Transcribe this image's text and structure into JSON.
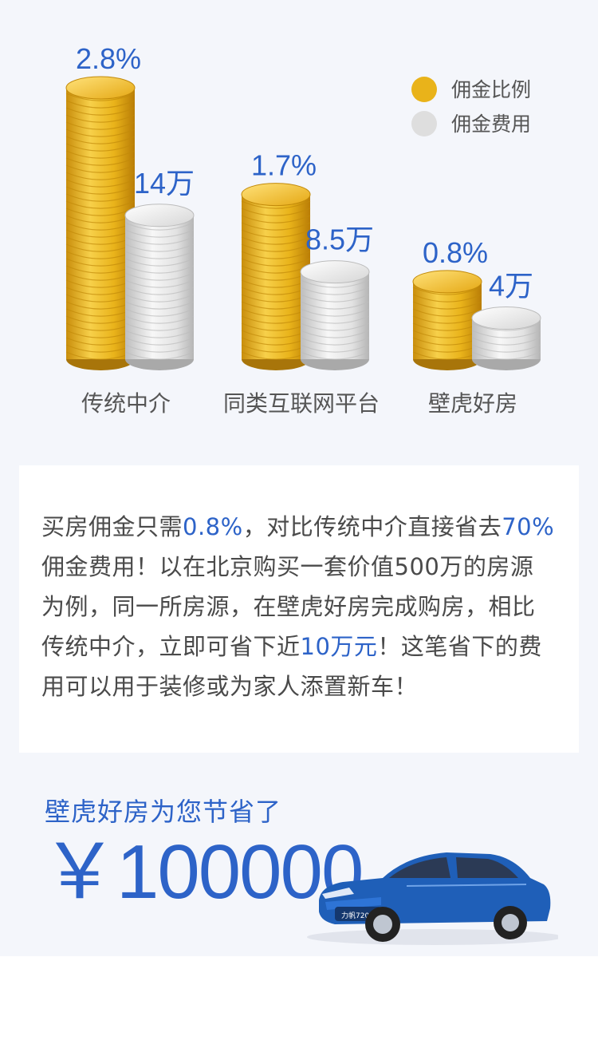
{
  "chart_data": {
    "type": "bar",
    "categories": [
      "传统中介",
      "同类互联网平台",
      "壁虎好房"
    ],
    "series": [
      {
        "name": "佣金比例",
        "values": [
          2.8,
          1.7,
          0.8
        ],
        "labels": [
          "2.8%",
          "1.7%",
          "0.8%"
        ],
        "color": "#e9b31a"
      },
      {
        "name": "佣金费用",
        "values": [
          14,
          8.5,
          4
        ],
        "labels": [
          "14万",
          "8.5万",
          "4万"
        ],
        "color": "#dcdcdc"
      }
    ],
    "legend_position": "top-right",
    "label_color": "#2d63c8"
  },
  "description": {
    "s1": "买房佣金只需",
    "h1": "0.8%",
    "s2": "，对比传统中介直接省去",
    "h2": "70%",
    "s3": "佣金费用！以在北京购买一套价值500万的房源为例，同一所房源，在壁虎好房完成购房，相比传统中介，立即可省下近",
    "h3": "10万元",
    "s4": "！这笔省下的费用可以用于装修或为家人添置新车！"
  },
  "savings": {
    "title": "壁虎好房为您节省了",
    "amount": "￥100000"
  },
  "car": {
    "plate": "力帆720"
  },
  "colors": {
    "accent": "#2d63c8",
    "gold": "#e9b31a",
    "silver": "#dcdcdc",
    "background": "#f4f6fb"
  }
}
